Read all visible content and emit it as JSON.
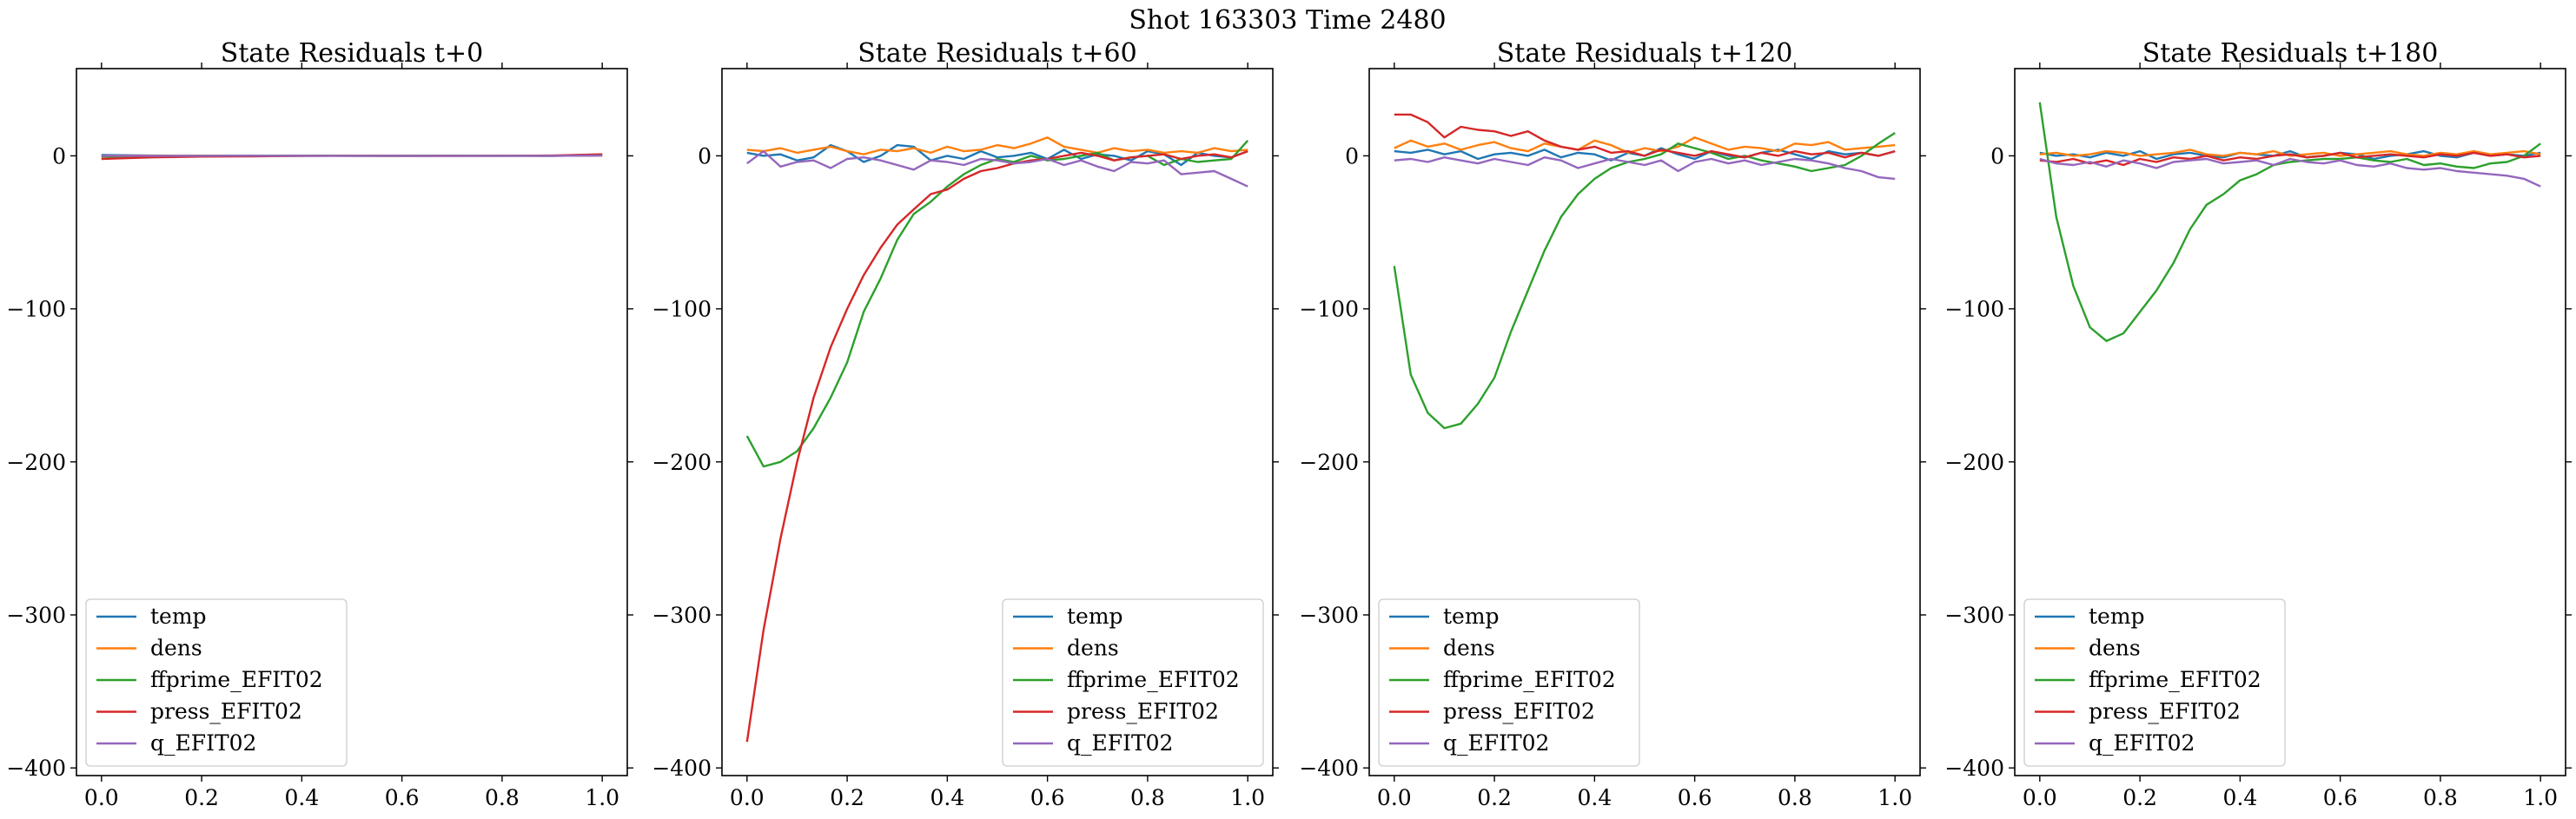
{
  "figure": {
    "suptitle": "Shot 163303   Time 2480"
  },
  "series_colors": {
    "temp": "#1f77b4",
    "dens": "#ff7f0e",
    "ffprime_EFIT02": "#2ca02c",
    "press_EFIT02": "#d62728",
    "q_EFIT02": "#9467bd"
  },
  "chart_data": [
    {
      "type": "line",
      "title": "State Residuals t+0",
      "xlabel": "",
      "ylabel": "",
      "xlim": [
        -0.05,
        1.05
      ],
      "ylim": [
        -405,
        57
      ],
      "xticks": [
        0.0,
        0.2,
        0.4,
        0.6,
        0.8,
        1.0
      ],
      "yticks": [
        0,
        -100,
        -200,
        -300,
        -400
      ],
      "legend_loc": "lower left",
      "grid": false,
      "x": [
        0.0,
        0.1,
        0.2,
        0.3,
        0.4,
        0.5,
        0.6,
        0.7,
        0.8,
        0.9,
        1.0
      ],
      "series": [
        {
          "name": "temp",
          "values": [
            0.5,
            0.2,
            0.0,
            -0.1,
            0.0,
            0.1,
            0.0,
            0.0,
            0.1,
            0.0,
            0.3
          ]
        },
        {
          "name": "dens",
          "values": [
            0.0,
            0.1,
            0.1,
            0.0,
            0.0,
            0.1,
            0.0,
            0.0,
            0.1,
            0.0,
            0.2
          ]
        },
        {
          "name": "ffprime_EFIT02",
          "values": [
            -0.5,
            -0.3,
            0.0,
            0.0,
            0.1,
            0.0,
            0.0,
            0.1,
            0.0,
            0.0,
            1.0
          ]
        },
        {
          "name": "press_EFIT02",
          "values": [
            -2.0,
            -1.0,
            -0.5,
            -0.3,
            0.0,
            0.0,
            0.0,
            0.0,
            0.0,
            0.2,
            1.0
          ]
        },
        {
          "name": "q_EFIT02",
          "values": [
            0.0,
            0.0,
            0.0,
            0.1,
            0.0,
            0.0,
            0.0,
            0.0,
            0.0,
            0.0,
            0.2
          ]
        }
      ]
    },
    {
      "type": "line",
      "title": "State Residuals t+60",
      "xlabel": "",
      "ylabel": "",
      "xlim": [
        -0.05,
        1.05
      ],
      "ylim": [
        -405,
        57
      ],
      "xticks": [
        0.0,
        0.2,
        0.4,
        0.6,
        0.8,
        1.0
      ],
      "yticks": [
        0,
        -100,
        -200,
        -300,
        -400
      ],
      "legend_loc": "lower right",
      "grid": false,
      "x": [
        0.0,
        0.033,
        0.067,
        0.1,
        0.133,
        0.167,
        0.2,
        0.233,
        0.267,
        0.3,
        0.333,
        0.367,
        0.4,
        0.433,
        0.467,
        0.5,
        0.533,
        0.567,
        0.6,
        0.633,
        0.667,
        0.7,
        0.733,
        0.767,
        0.8,
        0.833,
        0.867,
        0.9,
        0.933,
        0.967,
        1.0
      ],
      "series": [
        {
          "name": "temp",
          "values": [
            2,
            0,
            1,
            -3,
            -1,
            7,
            3,
            -4,
            0,
            7,
            6,
            -3,
            0,
            -2,
            3,
            -1,
            0,
            2,
            -2,
            4,
            -2,
            1,
            0,
            -3,
            3,
            1,
            -6,
            2,
            0,
            -1,
            3
          ]
        },
        {
          "name": "dens",
          "values": [
            4,
            3,
            5,
            2,
            4,
            6,
            3,
            1,
            4,
            3,
            5,
            2,
            6,
            3,
            4,
            7,
            5,
            8,
            12,
            6,
            4,
            2,
            5,
            3,
            4,
            2,
            3,
            2,
            5,
            3,
            4
          ]
        },
        {
          "name": "ffprime_EFIT02",
          "values": [
            -183,
            -203,
            -200,
            -193,
            -178,
            -158,
            -135,
            -102,
            -80,
            -55,
            -38,
            -30,
            -20,
            -12,
            -6,
            -2,
            -4,
            0,
            -3,
            -2,
            0,
            2,
            -3,
            -1,
            0,
            -6,
            -2,
            -4,
            -3,
            -2,
            10
          ]
        },
        {
          "name": "press_EFIT02",
          "values": [
            -383,
            -310,
            -250,
            -200,
            -158,
            -125,
            -100,
            -78,
            -60,
            -45,
            -35,
            -25,
            -22,
            -15,
            -10,
            -8,
            -5,
            -3,
            -2,
            0,
            2,
            0,
            -3,
            -1,
            0,
            1,
            -2,
            0,
            1,
            -1,
            3
          ]
        },
        {
          "name": "q_EFIT02",
          "values": [
            -5,
            3,
            -7,
            -4,
            -3,
            -8,
            -2,
            -1,
            -3,
            -6,
            -9,
            -3,
            -4,
            -6,
            -2,
            -3,
            -5,
            -4,
            -2,
            -6,
            -3,
            -7,
            -10,
            -4,
            -5,
            -3,
            -12,
            -11,
            -10,
            -15,
            -20
          ]
        }
      ]
    },
    {
      "type": "line",
      "title": "State Residuals t+120",
      "xlabel": "",
      "ylabel": "",
      "xlim": [
        -0.05,
        1.05
      ],
      "ylim": [
        -405,
        57
      ],
      "xticks": [
        0.0,
        0.2,
        0.4,
        0.6,
        0.8,
        1.0
      ],
      "yticks": [
        0,
        -100,
        -200,
        -300,
        -400
      ],
      "legend_loc": "lower left",
      "grid": false,
      "x": [
        0.0,
        0.033,
        0.067,
        0.1,
        0.133,
        0.167,
        0.2,
        0.233,
        0.267,
        0.3,
        0.333,
        0.367,
        0.4,
        0.433,
        0.467,
        0.5,
        0.533,
        0.567,
        0.6,
        0.633,
        0.667,
        0.7,
        0.733,
        0.767,
        0.8,
        0.833,
        0.867,
        0.9,
        0.933,
        0.967,
        1.0
      ],
      "series": [
        {
          "name": "temp",
          "values": [
            3,
            2,
            4,
            1,
            3,
            -2,
            1,
            2,
            0,
            4,
            -1,
            2,
            1,
            -3,
            2,
            0,
            5,
            1,
            -2,
            3,
            0,
            -1,
            2,
            4,
            1,
            -2,
            3,
            1,
            2,
            0,
            3
          ]
        },
        {
          "name": "dens",
          "values": [
            5,
            10,
            6,
            8,
            4,
            7,
            9,
            5,
            3,
            8,
            6,
            4,
            10,
            7,
            2,
            5,
            3,
            6,
            12,
            8,
            4,
            6,
            5,
            3,
            8,
            7,
            9,
            4,
            5,
            6,
            7
          ]
        },
        {
          "name": "ffprime_EFIT02",
          "values": [
            -72,
            -143,
            -168,
            -178,
            -175,
            -162,
            -145,
            -115,
            -88,
            -62,
            -40,
            -25,
            -15,
            -8,
            -4,
            -2,
            1,
            8,
            5,
            2,
            -2,
            0,
            -3,
            -5,
            -7,
            -10,
            -8,
            -6,
            0,
            8,
            15
          ]
        },
        {
          "name": "press_EFIT02",
          "values": [
            27,
            27,
            22,
            12,
            19,
            17,
            16,
            13,
            16,
            10,
            6,
            4,
            6,
            2,
            3,
            0,
            4,
            2,
            0,
            3,
            1,
            -1,
            2,
            0,
            3,
            1,
            2,
            -1,
            2,
            0,
            3
          ]
        },
        {
          "name": "q_EFIT02",
          "values": [
            -3,
            -2,
            -4,
            -1,
            -3,
            -5,
            -2,
            -4,
            -6,
            -1,
            -3,
            -8,
            -5,
            -2,
            -4,
            -6,
            -3,
            -10,
            -4,
            -2,
            -5,
            -3,
            -6,
            -4,
            -2,
            -3,
            -5,
            -8,
            -10,
            -14,
            -15
          ]
        }
      ]
    },
    {
      "type": "line",
      "title": "State Residuals t+180",
      "xlabel": "",
      "ylabel": "",
      "xlim": [
        -0.05,
        1.05
      ],
      "ylim": [
        -405,
        57
      ],
      "xticks": [
        0.0,
        0.2,
        0.4,
        0.6,
        0.8,
        1.0
      ],
      "yticks": [
        0,
        -100,
        -200,
        -300,
        -400
      ],
      "legend_loc": "lower left",
      "grid": false,
      "x": [
        0.0,
        0.033,
        0.067,
        0.1,
        0.133,
        0.167,
        0.2,
        0.233,
        0.267,
        0.3,
        0.333,
        0.367,
        0.4,
        0.433,
        0.467,
        0.5,
        0.533,
        0.567,
        0.6,
        0.633,
        0.667,
        0.7,
        0.733,
        0.767,
        0.8,
        0.833,
        0.867,
        0.9,
        0.933,
        0.967,
        1.0
      ],
      "series": [
        {
          "name": "temp",
          "values": [
            2,
            0,
            1,
            -1,
            2,
            0,
            3,
            -2,
            1,
            2,
            0,
            -1,
            2,
            1,
            0,
            3,
            -1,
            0,
            2,
            1,
            -2,
            0,
            1,
            3,
            0,
            -1,
            2,
            0,
            1,
            0,
            2
          ]
        },
        {
          "name": "dens",
          "values": [
            1,
            2,
            0,
            1,
            3,
            2,
            0,
            1,
            2,
            4,
            1,
            0,
            2,
            1,
            3,
            0,
            1,
            2,
            0,
            1,
            2,
            3,
            1,
            0,
            2,
            1,
            3,
            1,
            2,
            3,
            1
          ]
        },
        {
          "name": "ffprime_EFIT02",
          "values": [
            35,
            -40,
            -85,
            -112,
            -121,
            -116,
            -102,
            -88,
            -70,
            -48,
            -32,
            -25,
            -16,
            -12,
            -6,
            -4,
            -3,
            -2,
            -2,
            -1,
            -3,
            -4,
            -2,
            -6,
            -5,
            -7,
            -8,
            -5,
            -4,
            0,
            8
          ]
        },
        {
          "name": "press_EFIT02",
          "values": [
            -3,
            -4,
            -2,
            -5,
            -3,
            -6,
            -2,
            -4,
            -1,
            -2,
            0,
            -3,
            -1,
            -2,
            0,
            1,
            -1,
            0,
            2,
            -1,
            0,
            1,
            0,
            -1,
            1,
            0,
            2,
            0,
            1,
            -1,
            0
          ]
        },
        {
          "name": "q_EFIT02",
          "values": [
            -2,
            -5,
            -6,
            -4,
            -7,
            -3,
            -5,
            -8,
            -4,
            -3,
            -2,
            -5,
            -4,
            -3,
            -6,
            -2,
            -4,
            -5,
            -3,
            -6,
            -7,
            -5,
            -8,
            -9,
            -8,
            -10,
            -11,
            -12,
            -13,
            -15,
            -20
          ]
        }
      ]
    }
  ]
}
